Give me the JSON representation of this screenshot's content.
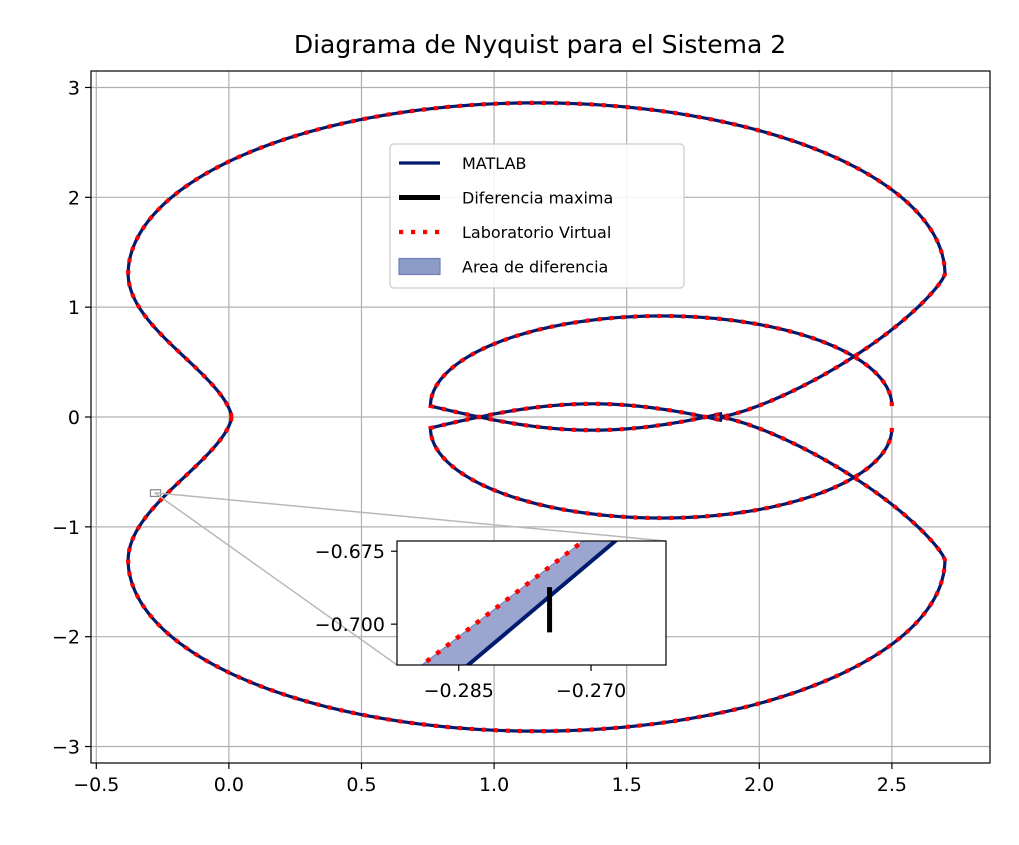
{
  "chart_data": {
    "type": "line",
    "title": "Diagrama de Nyquist para el Sistema 2",
    "xlabel": "",
    "ylabel": "",
    "xlim": [
      -0.52,
      2.87
    ],
    "ylim": [
      -3.15,
      3.15
    ],
    "grid": true,
    "x_ticks": [
      -0.5,
      0.0,
      0.5,
      1.0,
      1.5,
      2.0,
      2.5
    ],
    "x_tick_labels": [
      "−0.5",
      "0.0",
      "0.5",
      "1.0",
      "1.5",
      "2.0",
      "2.5"
    ],
    "y_ticks": [
      3,
      2,
      1,
      0,
      -1,
      -2,
      -3
    ],
    "y_tick_labels": [
      "3",
      "2",
      "1",
      "0",
      "−1",
      "−2",
      "−3"
    ],
    "legend_position": "upper-center",
    "legend": [
      {
        "label": "MATLAB",
        "style": "line",
        "color": "#001a6e"
      },
      {
        "label": "Diferencia maxima",
        "style": "thick-line",
        "color": "#000000"
      },
      {
        "label": "Laboratorio Virtual",
        "style": "dotted",
        "color": "#ff0000"
      },
      {
        "label": "Area de diferencia",
        "style": "patch",
        "color": "#8d9bc8"
      }
    ],
    "series": [
      {
        "name": "MATLAB",
        "color": "#001a6e",
        "curve": "nyquist-closed-loop",
        "x": [
          0.0,
          -0.06,
          -0.18,
          -0.3,
          -0.38,
          -0.36,
          -0.15,
          0.3,
          0.8,
          1.16,
          1.6,
          2.2,
          2.62,
          2.7,
          2.6,
          2.3,
          1.9,
          1.6,
          1.2,
          0.8,
          0.76,
          0.9,
          1.2,
          1.5,
          1.8,
          2.1,
          2.4,
          2.5
        ],
        "y": [
          0.0,
          0.35,
          0.6,
          0.85,
          1.3,
          1.75,
          2.25,
          2.6,
          2.8,
          2.86,
          2.8,
          2.45,
          1.85,
          1.3,
          0.8,
          0.4,
          0.1,
          0.92,
          0.85,
          0.4,
          0.2,
          0.08,
          0.14,
          0.1,
          0.0,
          -0.2,
          -0.4,
          0.0
        ]
      },
      {
        "name": "Laboratorio Virtual",
        "color": "#ff0000",
        "curve": "nyquist-closed-loop-shifted",
        "x": [
          0.0,
          -0.06,
          -0.18,
          -0.3,
          -0.38,
          -0.36,
          -0.15,
          0.3,
          0.8,
          1.16,
          1.6,
          2.2,
          2.62,
          2.7,
          2.6,
          2.3,
          1.9,
          1.6,
          1.2,
          0.8,
          0.76,
          0.9,
          1.2,
          1.5,
          1.8,
          2.1,
          2.4,
          2.5
        ],
        "y": [
          0.0,
          0.35,
          0.6,
          0.85,
          1.3,
          1.75,
          2.25,
          2.6,
          2.8,
          2.86,
          2.8,
          2.45,
          1.85,
          1.3,
          0.8,
          0.4,
          0.1,
          0.92,
          0.85,
          0.4,
          0.2,
          0.08,
          0.14,
          0.1,
          0.0,
          -0.2,
          -0.4,
          0.0
        ]
      }
    ],
    "inset": {
      "xlim": [
        -0.292,
        -0.2615
      ],
      "ylim": [
        -0.714,
        -0.6715
      ],
      "x_ticks": [
        -0.285,
        -0.27
      ],
      "x_tick_labels": [
        "−0.285",
        "−0.270"
      ],
      "y_ticks": [
        -0.675,
        -0.7
      ],
      "y_tick_labels": [
        "−0.675",
        "−0.700"
      ],
      "zoom_point": {
        "x": -0.28,
        "y": -0.69
      },
      "max_difference": {
        "x": -0.2747,
        "y_top": -0.6873,
        "y_bottom": -0.7028
      },
      "matlab_line": {
        "x": [
          -0.2855,
          -0.2647
        ],
        "y": [
          -0.718,
          -0.665
        ]
      },
      "virtual_line": {
        "x": [
          -0.2909,
          -0.2681
        ],
        "y": [
          -0.718,
          -0.665
        ]
      }
    }
  }
}
